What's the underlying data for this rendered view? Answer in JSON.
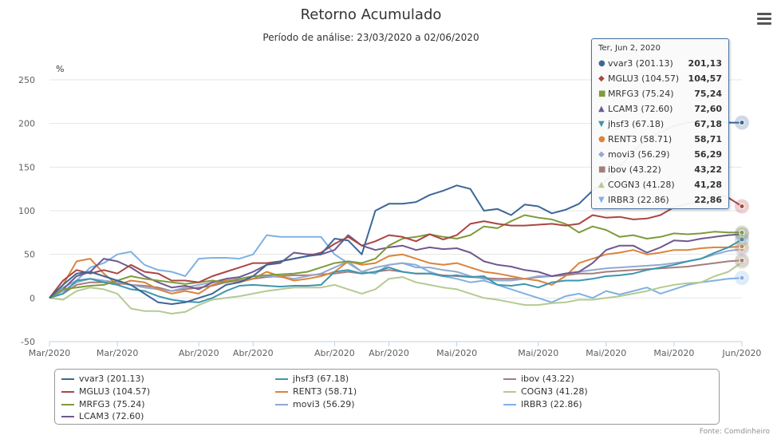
{
  "title": "Retorno Acumulado",
  "subtitle": "Período de análise: 23/03/2020 a 02/06/2020",
  "credits": "Fonte: Comdinheiro",
  "tooltip": {
    "header": "Ter, Jun 2, 2020",
    "rows": [
      {
        "label": "vvar3 (201.13)",
        "value": "201,13",
        "color": "#3d6797",
        "symbol": "●"
      },
      {
        "label": "MGLU3 (104.57)",
        "value": "104,57",
        "color": "#aa4643",
        "symbol": "◆"
      },
      {
        "label": "MRFG3 (75.24)",
        "value": "75,24",
        "color": "#7f9b3b",
        "symbol": "■"
      },
      {
        "label": "LCAM3 (72.60)",
        "value": "72,60",
        "color": "#70588f",
        "symbol": "▲"
      },
      {
        "label": "jhsf3 (67.18)",
        "value": "67,18",
        "color": "#3d96ae",
        "symbol": "▼"
      },
      {
        "label": "RENT3 (58.71)",
        "value": "58,71",
        "color": "#db843d",
        "symbol": "●"
      },
      {
        "label": "movi3 (56.29)",
        "value": "56,29",
        "color": "#93a9cf",
        "symbol": "◆"
      },
      {
        "label": "ibov (43.22)",
        "value": "43,22",
        "color": "#a47d7c",
        "symbol": "■"
      },
      {
        "label": "COGN3 (41.28)",
        "value": "41,28",
        "color": "#b5ca92",
        "symbol": "▲"
      },
      {
        "label": "IRBR3 (22.86)",
        "value": "22,86",
        "color": "#80b1e3",
        "symbol": "▼"
      }
    ]
  },
  "chart_data": {
    "type": "line",
    "title": "Retorno Acumulado",
    "subtitle": "Período de análise: 23/03/2020 a 02/06/2020",
    "ylabel": "%",
    "ylim": [
      -50,
      250
    ],
    "yticks": [
      -50,
      0,
      50,
      100,
      150,
      200,
      250
    ],
    "xtick_labels": [
      "Mar/2020",
      "Mar/2020",
      "Abr/2020",
      "Abr/2020",
      "Abr/2020",
      "Abr/2020",
      "Mai/2020",
      "Mai/2020",
      "Mai/2020",
      "Mai/2020",
      "Jun/2020"
    ],
    "xtick_positions": [
      0,
      5,
      11,
      15,
      21,
      25,
      30,
      36,
      41,
      46,
      51
    ],
    "n_points": 52,
    "series": [
      {
        "name": "vvar3 (201.13)",
        "color": "#3d6797",
        "values": [
          0,
          15,
          28,
          30,
          25,
          20,
          15,
          5,
          -5,
          -7,
          -5,
          0,
          5,
          15,
          18,
          25,
          38,
          42,
          45,
          48,
          50,
          68,
          66,
          50,
          100,
          108,
          108,
          110,
          118,
          123,
          129,
          125,
          100,
          102,
          95,
          107,
          105,
          97,
          101,
          108,
          123,
          135,
          150,
          168,
          182,
          190,
          197,
          201,
          203,
          202,
          201,
          201
        ]
      },
      {
        "name": "MGLU3 (104.57)",
        "color": "#aa4643",
        "values": [
          0,
          20,
          32,
          28,
          32,
          28,
          38,
          30,
          28,
          20,
          20,
          18,
          25,
          30,
          35,
          40,
          40,
          42,
          45,
          48,
          52,
          62,
          70,
          60,
          65,
          72,
          70,
          65,
          73,
          67,
          72,
          85,
          88,
          85,
          83,
          83,
          84,
          85,
          83,
          85,
          95,
          92,
          93,
          90,
          91,
          95,
          104,
          108,
          110,
          120,
          115,
          105
        ]
      },
      {
        "name": "MRFG3 (75.24)",
        "color": "#7f9b3b",
        "values": [
          0,
          10,
          12,
          14,
          15,
          20,
          25,
          22,
          20,
          18,
          16,
          18,
          20,
          18,
          22,
          25,
          26,
          27,
          28,
          30,
          35,
          40,
          42,
          40,
          45,
          60,
          68,
          70,
          73,
          70,
          68,
          72,
          82,
          80,
          88,
          95,
          92,
          90,
          85,
          75,
          82,
          78,
          70,
          72,
          68,
          70,
          74,
          73,
          74,
          76,
          75,
          75
        ]
      },
      {
        "name": "LCAM3 (72.60)",
        "color": "#70588f",
        "values": [
          0,
          10,
          25,
          30,
          45,
          42,
          35,
          25,
          18,
          12,
          14,
          10,
          18,
          22,
          24,
          30,
          38,
          40,
          52,
          50,
          50,
          55,
          72,
          60,
          55,
          58,
          60,
          55,
          58,
          56,
          57,
          52,
          42,
          38,
          36,
          32,
          30,
          25,
          28,
          30,
          40,
          55,
          60,
          60,
          52,
          58,
          66,
          65,
          68,
          70,
          72,
          73
        ]
      },
      {
        "name": "jhsf3 (67.18)",
        "color": "#3d96ae",
        "values": [
          0,
          5,
          20,
          22,
          18,
          15,
          10,
          8,
          2,
          -2,
          -4,
          -5,
          0,
          8,
          14,
          15,
          14,
          13,
          14,
          14,
          15,
          30,
          32,
          28,
          30,
          35,
          30,
          28,
          28,
          25,
          26,
          24,
          25,
          15,
          14,
          16,
          12,
          18,
          20,
          20,
          22,
          25,
          26,
          28,
          32,
          35,
          38,
          42,
          45,
          52,
          58,
          67
        ]
      },
      {
        "name": "RENT3 (58.71)",
        "color": "#db843d",
        "values": [
          0,
          15,
          42,
          45,
          28,
          15,
          20,
          18,
          10,
          5,
          8,
          5,
          15,
          20,
          18,
          22,
          30,
          25,
          20,
          22,
          25,
          30,
          42,
          38,
          40,
          48,
          50,
          45,
          40,
          38,
          40,
          35,
          30,
          28,
          25,
          22,
          20,
          15,
          25,
          40,
          45,
          50,
          52,
          55,
          50,
          52,
          55,
          55,
          57,
          58,
          58,
          59
        ]
      },
      {
        "name": "movi3 (56.29)",
        "color": "#93a9cf",
        "values": [
          0,
          8,
          18,
          22,
          20,
          18,
          15,
          12,
          10,
          8,
          12,
          15,
          18,
          20,
          22,
          25,
          25,
          24,
          22,
          25,
          28,
          35,
          42,
          30,
          35,
          38,
          40,
          35,
          35,
          32,
          30,
          25,
          22,
          20,
          20,
          22,
          25,
          25,
          28,
          30,
          32,
          34,
          35,
          36,
          37,
          38,
          40,
          42,
          45,
          50,
          54,
          56
        ]
      },
      {
        "name": "ibov (43.22)",
        "color": "#a47d7c",
        "values": [
          0,
          5,
          15,
          18,
          18,
          17,
          15,
          14,
          12,
          8,
          10,
          12,
          14,
          18,
          20,
          22,
          24,
          25,
          26,
          26,
          27,
          28,
          30,
          28,
          30,
          32,
          30,
          28,
          28,
          26,
          25,
          24,
          23,
          22,
          22,
          22,
          24,
          25,
          26,
          28,
          28,
          30,
          31,
          32,
          33,
          34,
          35,
          36,
          38,
          40,
          42,
          43
        ]
      },
      {
        "name": "COGN3 (41.28)",
        "color": "#b5ca92",
        "values": [
          0,
          -2,
          8,
          12,
          10,
          5,
          -12,
          -15,
          -15,
          -18,
          -16,
          -8,
          -2,
          0,
          2,
          5,
          8,
          10,
          12,
          12,
          12,
          15,
          10,
          5,
          10,
          22,
          24,
          18,
          15,
          12,
          10,
          5,
          0,
          -2,
          -5,
          -8,
          -8,
          -6,
          -5,
          -2,
          -2,
          0,
          2,
          5,
          8,
          12,
          15,
          17,
          18,
          25,
          30,
          41
        ]
      },
      {
        "name": "IRBR3 (22.86)",
        "color": "#80b1e3",
        "values": [
          0,
          12,
          20,
          35,
          40,
          50,
          53,
          38,
          32,
          30,
          25,
          45,
          46,
          46,
          45,
          50,
          72,
          70,
          70,
          70,
          70,
          50,
          40,
          30,
          28,
          38,
          40,
          38,
          30,
          25,
          22,
          18,
          20,
          15,
          10,
          5,
          0,
          -5,
          2,
          5,
          0,
          8,
          4,
          8,
          12,
          5,
          10,
          15,
          18,
          20,
          22,
          23
        ]
      }
    ]
  }
}
